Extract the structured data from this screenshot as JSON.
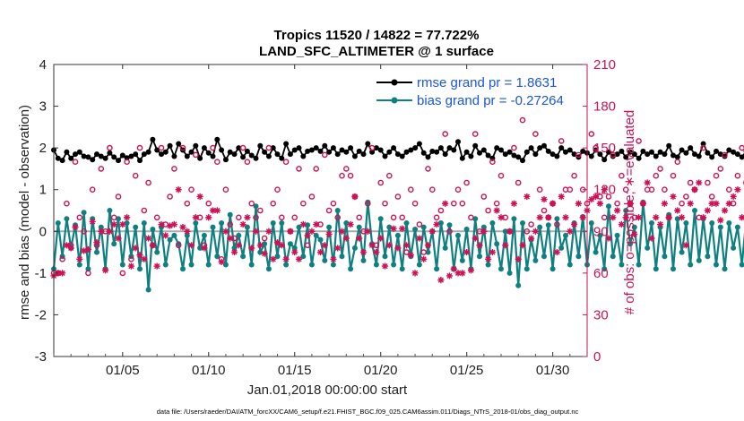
{
  "chart_data": {
    "type": "line",
    "title": "Tropics 11520 / 14822 = 77.722%",
    "subtitle": "LAND_SFC_ALTIMETER @ 1 surface",
    "xlabel": "Jan.01,2018 00:00:00 start",
    "ylabel": "rmse and bias (model - observation)",
    "ylabel_right": "# of obs: o=possible; ∗=evaluated",
    "footer": "data file: /Users/raeder/DAI/ATM_forcXX/CAM6_setup/f.e21.FHIST_BGC.f09_025.CAM6assim.011/Diags_NTrS_2018-01/obs_diag_output.nc",
    "xlim": [
      1.0,
      32.0
    ],
    "ylim": [
      -3,
      4
    ],
    "ylim_right": [
      0,
      210
    ],
    "x_tick_values": [
      5,
      10,
      15,
      20,
      25,
      30
    ],
    "x_tick_labels": [
      "01/05",
      "01/10",
      "01/15",
      "01/20",
      "01/25",
      "01/30"
    ],
    "y_tick_labels": [
      "-3",
      "-2",
      "-1",
      "0",
      "1",
      "2",
      "3",
      "4"
    ],
    "y_right_tick_labels": [
      "0",
      "30",
      "60",
      "90",
      "120",
      "150",
      "180",
      "210"
    ],
    "time_step_days": 0.25,
    "series": [
      {
        "name": "rmse",
        "legend": "rmse grand pr = 1.8631",
        "color": "#000000",
        "marker": "filled-circle",
        "axis": "left",
        "values": [
          1.95,
          1.75,
          1.7,
          1.9,
          1.75,
          1.85,
          1.9,
          1.8,
          1.78,
          1.72,
          1.85,
          1.8,
          1.75,
          1.88,
          1.78,
          1.7,
          1.82,
          1.76,
          1.8,
          1.85,
          1.7,
          1.85,
          1.9,
          2.2,
          1.95,
          1.85,
          1.9,
          2.05,
          1.8,
          2.1,
          1.95,
          1.8,
          1.9,
          2.05,
          1.75,
          2.0,
          1.88,
          1.8,
          2.2,
          1.95,
          1.72,
          1.9,
          1.85,
          2.0,
          1.78,
          1.92,
          1.82,
          1.75,
          2.05,
          1.9,
          1.8,
          2.0,
          1.85,
          1.75,
          2.1,
          1.85,
          1.95,
          2.0,
          1.8,
          1.92,
          1.95,
          2.0,
          1.92,
          2.05,
          1.9,
          2.0,
          1.85,
          1.95,
          1.9,
          2.0,
          1.8,
          1.92,
          1.85,
          2.1,
          1.9,
          2.0,
          1.95,
          1.8,
          1.9,
          2.0,
          1.85,
          1.8,
          1.9,
          1.95,
          2.0,
          2.1,
          1.88,
          1.78,
          1.92,
          1.9,
          2.0,
          1.85,
          2.0,
          1.95,
          2.15,
          1.75,
          1.9,
          1.8,
          2.05,
          1.88,
          1.95,
          1.82,
          1.75,
          2.0,
          1.95,
          1.85,
          1.9,
          1.82,
          1.78,
          1.7,
          1.9,
          2.0,
          1.85,
          2.0,
          2.05,
          1.92,
          1.85,
          1.8,
          2.0,
          1.9,
          1.95,
          1.85,
          1.78,
          1.92,
          1.88,
          1.8,
          1.95,
          1.85,
          1.72,
          1.9,
          1.8,
          1.85,
          1.92,
          1.78,
          1.9,
          1.85,
          1.75,
          1.92,
          1.85,
          1.9,
          1.8,
          1.9,
          1.85,
          2.05,
          1.82,
          1.78,
          1.95,
          1.88,
          2.0,
          1.85,
          1.8,
          2.1,
          1.88,
          1.78,
          1.92,
          1.85,
          1.8,
          1.95,
          1.9,
          1.85,
          1.78,
          1.92,
          1.88,
          1.75,
          1.85,
          1.82,
          1.75,
          1.82,
          1.78,
          1.9,
          1.85,
          1.72,
          1.85,
          1.8,
          1.88,
          1.92,
          1.85,
          1.82,
          1.75,
          1.78,
          1.9,
          1.85,
          1.8,
          1.9,
          1.92,
          1.85,
          2.1,
          1.8,
          1.75,
          1.9,
          2.2,
          2.0,
          1.82,
          1.75,
          2.05,
          1.9,
          1.8
        ]
      },
      {
        "name": "bias",
        "legend": "bias grand pr = -0.27264",
        "color": "#0f8080",
        "marker": "filled-circle",
        "axis": "left",
        "values": [
          -0.9,
          0.2,
          -0.6,
          0.3,
          -0.4,
          0.15,
          -0.8,
          0.45,
          -0.9,
          0.3,
          -0.5,
          0.1,
          -0.9,
          0.5,
          -0.3,
          0.3,
          -0.8,
          0.2,
          -0.6,
          0.1,
          -0.9,
          0.2,
          -1.4,
          0.05,
          -0.5,
          0.1,
          -0.8,
          -0.2,
          -0.1,
          -0.3,
          -0.9,
          -0.1,
          -0.8,
          0.2,
          -0.4,
          -0.1,
          -0.8,
          0.1,
          -0.6,
          0.2,
          -0.8,
          0.4,
          -0.4,
          -0.1,
          -0.6,
          0.1,
          -0.8,
          0.6,
          -0.5,
          -0.3,
          -0.9,
          0.2,
          -0.6,
          0.2,
          -0.8,
          -0.3,
          -0.4,
          0.1,
          -0.6,
          0.15,
          -0.8,
          -0.1,
          -0.2,
          -0.7,
          0.1,
          -0.8,
          0.5,
          -0.6,
          0.2,
          -0.9,
          -0.4,
          0.1,
          -0.7,
          0.7,
          -0.3,
          -0.8,
          0.3,
          -0.6,
          0.1,
          -0.8,
          -0.1,
          -0.9,
          0.2,
          -0.6,
          0.05,
          -0.8,
          0.1,
          -0.5,
          0.0,
          -0.9,
          0.2,
          -0.4,
          0.15,
          -0.9,
          -0.1,
          -0.7,
          0.05,
          -0.9,
          0.3,
          -0.6,
          0.1,
          -0.8,
          0.2,
          -0.3,
          -0.9,
          0.0,
          -1.0,
          0.3,
          -1.3,
          0.2,
          -0.9,
          -0.2,
          -0.7,
          0.1,
          -0.6,
          0.15,
          -0.9,
          0.3,
          -0.4,
          -0.1,
          -0.8,
          0.2,
          -0.6,
          0.35,
          -0.8,
          0.2,
          -0.5,
          -0.1,
          -0.9,
          0.6,
          -0.6,
          -0.1,
          -0.8,
          0.5,
          -0.3,
          0.1,
          -0.8,
          0.7,
          -0.4,
          0.2,
          -0.9,
          0.1,
          -0.6,
          0.4,
          -0.9,
          0.3,
          -0.5,
          0.2,
          -0.8,
          0.5,
          -0.7,
          0.3,
          -0.6,
          0.2,
          -0.8,
          0.1,
          -0.9,
          0.2,
          -0.4,
          0.1,
          -0.8,
          0.3,
          -0.7,
          0.15,
          -0.9,
          0.2,
          -0.6,
          0.4,
          -0.9,
          0.2,
          -0.3,
          0.0,
          -0.8,
          0.4,
          -0.9,
          0.2,
          -0.7,
          0.6,
          -1.0,
          0.35,
          -0.6,
          0.1,
          -0.9,
          0.3,
          -0.5,
          0.2,
          -0.8,
          0.7,
          -0.4,
          -0.2,
          -0.6,
          0.2,
          -0.9,
          -0.3,
          -1.0,
          0.05,
          -0.7,
          -0.05
        ]
      },
      {
        "name": "possible",
        "color": "#cc1155",
        "marker": "open-circle",
        "axis": "right",
        "values": [
          60,
          60,
          70,
          110,
          80,
          140,
          100,
          90,
          60,
          120,
          80,
          135,
          90,
          150,
          100,
          115,
          60,
          140,
          70,
          130,
          150,
          105,
          125,
          80,
          100,
          150,
          95,
          115,
          135,
          80,
          150,
          110,
          120,
          145,
          100,
          80,
          110,
          150,
          140,
          70,
          120,
          95,
          85,
          100,
          150,
          140,
          110,
          100,
          105,
          85,
          150,
          110,
          120,
          100,
          140,
          90,
          100,
          135,
          110,
          80,
          115,
          135,
          95,
          145,
          105,
          110,
          100,
          130,
          135,
          130,
          115,
          100,
          90,
          110,
          150,
          80,
          125,
          110,
          130,
          100,
          115,
          100,
          75,
          120,
          110,
          95,
          75,
          135,
          120,
          100,
          105,
          160,
          90,
          110,
          120,
          110,
          125,
          100,
          160,
          90,
          115,
          105,
          140,
          110,
          130,
          100,
          90,
          150,
          125,
          170,
          90,
          95,
          160,
          120,
          105,
          100,
          110,
          95,
          155,
          120,
          120,
          130,
          145,
          120,
          110,
          160,
          150,
          115,
          100,
          115,
          145,
          110,
          130,
          120,
          110,
          100,
          155,
          110,
          120,
          120,
          130,
          135,
          120,
          100,
          130,
          140,
          110,
          115,
          125,
          120,
          100,
          150,
          125,
          115,
          130,
          135,
          145,
          120,
          110,
          130,
          150,
          125,
          130,
          115,
          110,
          145,
          130,
          135,
          150,
          110,
          125,
          140,
          130,
          125,
          120,
          145,
          135,
          150,
          130,
          170,
          120,
          135,
          150,
          140,
          120,
          130,
          145,
          115,
          130,
          175,
          135,
          145,
          155,
          175,
          125,
          150
        ]
      },
      {
        "name": "evaluated",
        "color": "#cc1155",
        "marker": "asterisk",
        "axis": "right",
        "values": [
          58,
          60,
          60,
          80,
          78,
          93,
          70,
          76,
          77,
          97,
          82,
          90,
          62,
          90,
          95,
          85,
          95,
          100,
          65,
          78,
          73,
          70,
          85,
          80,
          65,
          95,
          87,
          94,
          95,
          120,
          93,
          90,
          80,
          100,
          115,
          78,
          100,
          105,
          105,
          68,
          90,
          85,
          75,
          80,
          95,
          100,
          78,
          90,
          80,
          74,
          90,
          70,
          82,
          80,
          70,
          90,
          75,
          70,
          95,
          87,
          90,
          95,
          75,
          80,
          88,
          70,
          78,
          90,
          85,
          95,
          115,
          85,
          75,
          90,
          80,
          75,
          85,
          65,
          80,
          92,
          78,
          92,
          80,
          73,
          60,
          85,
          70,
          80,
          90,
          95,
          55,
          110,
          58,
          63,
          60,
          60,
          75,
          62,
          85,
          80,
          90,
          70,
          75,
          105,
          100,
          80,
          90,
          110,
          70,
          80,
          115,
          85,
          90,
          100,
          113,
          100,
          110,
          75,
          115,
          100,
          90,
          95,
          110,
          100,
          105,
          113,
          115,
          110,
          120,
          85,
          100,
          105,
          95,
          100,
          110,
          88,
          100,
          110,
          125,
          85,
          100,
          95,
          110,
          100,
          115,
          105,
          100,
          80,
          110,
          120,
          125,
          100,
          105,
          110,
          110,
          98,
          105,
          110,
          115,
          120,
          100,
          125,
          110,
          125,
          100,
          118,
          123,
          120,
          110,
          117,
          115,
          120,
          95,
          105,
          112,
          100,
          110,
          90,
          118,
          100,
          130,
          115,
          95,
          110,
          118,
          100,
          113,
          85,
          108,
          110,
          100,
          97,
          112,
          110,
          113,
          123
        ]
      }
    ]
  }
}
